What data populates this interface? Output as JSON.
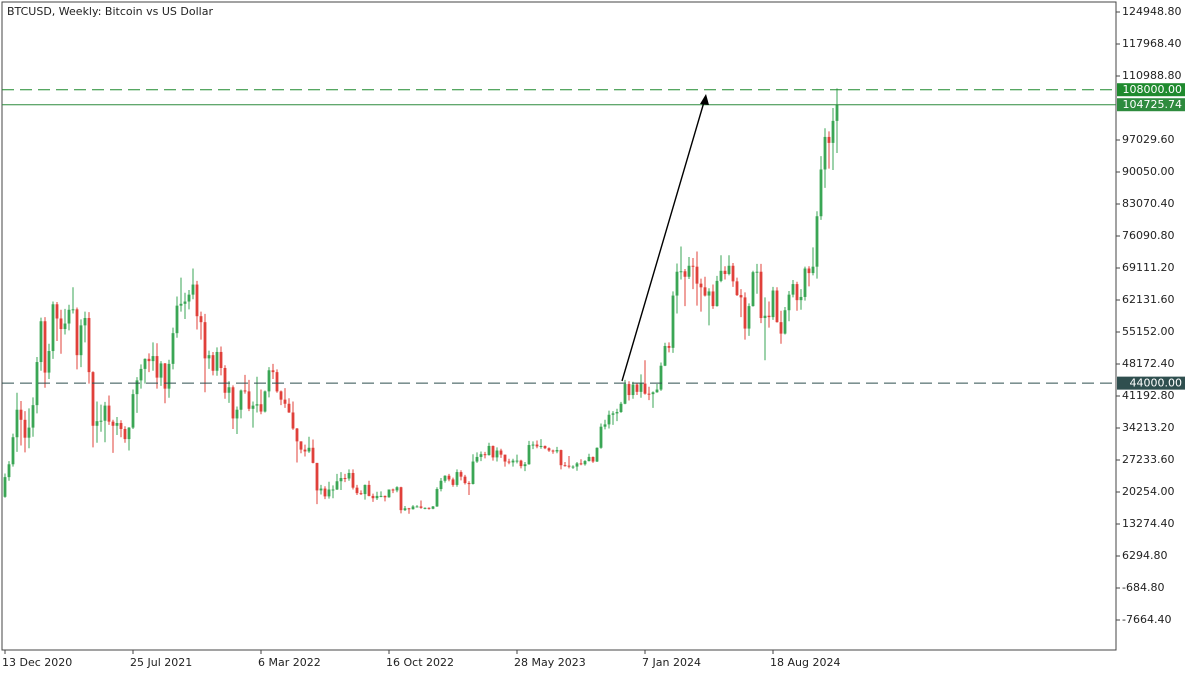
{
  "chart_data": {
    "type": "candlestick",
    "title": "BTCUSD, Weekly:  Bitcoin vs US Dollar",
    "up_color": "#3aa655",
    "down_color": "#e0403a",
    "xlim": [
      -0.75,
      277.75
    ],
    "xticks": [
      {
        "value": 0,
        "label": "13 Dec 2020"
      },
      {
        "value": 32,
        "label": "25 Jul 2021"
      },
      {
        "value": 64,
        "label": "6 Mar 2022"
      },
      {
        "value": 96,
        "label": "16 Oct 2022"
      },
      {
        "value": 128,
        "label": "28 May 2023"
      },
      {
        "value": 160,
        "label": "7 Jan 2024"
      },
      {
        "value": 192,
        "label": "18 Aug 2024"
      }
    ],
    "ylim": [
      -14208,
      127130
    ],
    "yticks": [
      {
        "value": 124948.8,
        "label": "124948.80"
      },
      {
        "value": 117968.4,
        "label": "117968.40"
      },
      {
        "value": 110988.8,
        "label": "110988.80"
      },
      {
        "value": 97029.6,
        "label": "97029.60"
      },
      {
        "value": 90050,
        "label": "90050.00"
      },
      {
        "value": 83070.4,
        "label": "83070.40"
      },
      {
        "value": 76090.8,
        "label": "76090.80"
      },
      {
        "value": 69111.2,
        "label": "69111.20"
      },
      {
        "value": 62131.6,
        "label": "62131.60"
      },
      {
        "value": 55152,
        "label": "55152.00"
      },
      {
        "value": 48172.4,
        "label": "48172.40"
      },
      {
        "value": 41192.8,
        "label": "41192.80"
      },
      {
        "value": 34213.2,
        "label": "34213.20"
      },
      {
        "value": 27233.6,
        "label": "27233.60"
      },
      {
        "value": 20254,
        "label": "20254.00"
      },
      {
        "value": 13274.4,
        "label": "13274.40"
      },
      {
        "value": 6294.8,
        "label": "6294.80"
      },
      {
        "value": -684.8,
        "label": "-684.80"
      },
      {
        "value": -7664.4,
        "label": "-7664.40"
      }
    ],
    "levels": [
      {
        "value": 108000,
        "label": "108000.00",
        "style": "dashed",
        "color": "#1f8a2e"
      },
      {
        "value": 104725.74,
        "style": "solid",
        "color": "#2e8b3e"
      },
      {
        "value": 44000,
        "label": "44000.00",
        "style": "dashed",
        "color": "#2f4f4f"
      }
    ],
    "ohlc": [
      [
        19200,
        24300,
        19000,
        23500
      ],
      [
        23500,
        27000,
        22700,
        26300
      ],
      [
        26300,
        33000,
        25800,
        32200
      ],
      [
        32200,
        41900,
        29000,
        38200
      ],
      [
        38200,
        40100,
        30400,
        36000
      ],
      [
        36000,
        37900,
        28900,
        32100
      ],
      [
        32100,
        38500,
        29800,
        34300
      ],
      [
        34300,
        40900,
        32300,
        39200
      ],
      [
        39200,
        49700,
        37400,
        48600
      ],
      [
        48600,
        58300,
        46700,
        57500
      ],
      [
        57500,
        58400,
        43000,
        46300
      ],
      [
        46300,
        52600,
        44900,
        51000
      ],
      [
        51000,
        61800,
        49300,
        61200
      ],
      [
        61200,
        61700,
        53200,
        58100
      ],
      [
        58100,
        60000,
        50400,
        55800
      ],
      [
        55800,
        60200,
        54600,
        57000
      ],
      [
        57000,
        61100,
        55500,
        60000
      ],
      [
        60000,
        64900,
        59200,
        60100
      ],
      [
        60100,
        60500,
        47000,
        50100
      ],
      [
        50100,
        57900,
        47500,
        56600
      ],
      [
        56600,
        59600,
        52900,
        58200
      ],
      [
        58200,
        59500,
        43900,
        46400
      ],
      [
        46400,
        46600,
        30000,
        34700
      ],
      [
        34700,
        40000,
        31000,
        35700
      ],
      [
        35700,
        39300,
        33400,
        35800
      ],
      [
        35800,
        39900,
        31100,
        39100
      ],
      [
        39100,
        41300,
        34900,
        35600
      ],
      [
        35600,
        36000,
        28800,
        34700
      ],
      [
        34700,
        36600,
        32700,
        35300
      ],
      [
        35300,
        35900,
        32200,
        34000
      ],
      [
        34000,
        34600,
        31000,
        31800
      ],
      [
        31800,
        34400,
        29300,
        34300
      ],
      [
        34300,
        42600,
        34000,
        41600
      ],
      [
        41600,
        45300,
        37500,
        44600
      ],
      [
        44600,
        48100,
        42800,
        47100
      ],
      [
        47100,
        49400,
        43900,
        49300
      ],
      [
        49300,
        50500,
        46400,
        48800
      ],
      [
        48800,
        52900,
        46700,
        49900
      ],
      [
        49900,
        52700,
        42800,
        45200
      ],
      [
        45200,
        48800,
        43400,
        48300
      ],
      [
        48300,
        48400,
        39600,
        42800
      ],
      [
        42800,
        49100,
        40800,
        48200
      ],
      [
        48200,
        56100,
        47000,
        54900
      ],
      [
        54900,
        62900,
        53900,
        60900
      ],
      [
        60900,
        67000,
        59600,
        61300
      ],
      [
        61300,
        63700,
        58000,
        61800
      ],
      [
        61800,
        64300,
        60100,
        63300
      ],
      [
        63300,
        69000,
        62300,
        65500
      ],
      [
        65500,
        66300,
        55700,
        58600
      ],
      [
        58600,
        59600,
        53500,
        57300
      ],
      [
        57300,
        59100,
        42000,
        49400
      ],
      [
        49400,
        51100,
        47100,
        50100
      ],
      [
        50100,
        50800,
        45700,
        46700
      ],
      [
        46700,
        51800,
        45600,
        50800
      ],
      [
        50800,
        52000,
        45700,
        47300
      ],
      [
        47300,
        47900,
        40600,
        41900
      ],
      [
        41900,
        44400,
        39700,
        43100
      ],
      [
        43100,
        43500,
        34000,
        36300
      ],
      [
        36300,
        38900,
        32900,
        38200
      ],
      [
        38200,
        42600,
        36300,
        42400
      ],
      [
        42400,
        45800,
        41700,
        42200
      ],
      [
        42200,
        44700,
        37900,
        38400
      ],
      [
        38400,
        40000,
        34300,
        39100
      ],
      [
        39100,
        45400,
        37600,
        39400
      ],
      [
        39400,
        42600,
        37200,
        37800
      ],
      [
        37800,
        42400,
        37600,
        42200
      ],
      [
        42200,
        47500,
        40900,
        46800
      ],
      [
        46800,
        48200,
        44900,
        46400
      ],
      [
        46400,
        47000,
        41900,
        42200
      ],
      [
        42200,
        42400,
        39200,
        40400
      ],
      [
        40400,
        42900,
        38600,
        39500
      ],
      [
        39500,
        40700,
        37500,
        37600
      ],
      [
        37600,
        40000,
        33800,
        34100
      ],
      [
        34100,
        34200,
        26700,
        31300
      ],
      [
        31300,
        31300,
        28700,
        29500
      ],
      [
        29500,
        30600,
        28000,
        29100
      ],
      [
        29100,
        32300,
        28800,
        29900
      ],
      [
        29900,
        31700,
        26500,
        26600
      ],
      [
        26600,
        26600,
        17600,
        20600
      ],
      [
        20600,
        21800,
        19700,
        21000
      ],
      [
        21000,
        21500,
        18700,
        19300
      ],
      [
        19300,
        22500,
        18800,
        20800
      ],
      [
        20800,
        21700,
        18900,
        20800
      ],
      [
        20800,
        24200,
        20700,
        22600
      ],
      [
        22600,
        24600,
        20700,
        23300
      ],
      [
        23300,
        24200,
        22400,
        23200
      ],
      [
        23200,
        25200,
        22700,
        24400
      ],
      [
        24400,
        25200,
        20800,
        21200
      ],
      [
        21200,
        21800,
        19600,
        20000
      ],
      [
        20000,
        20600,
        19600,
        19800
      ],
      [
        19800,
        21900,
        18600,
        21800
      ],
      [
        21800,
        22700,
        19300,
        19400
      ],
      [
        19400,
        19900,
        18100,
        18900
      ],
      [
        18900,
        20300,
        18500,
        19400
      ],
      [
        19400,
        20400,
        19100,
        19400
      ],
      [
        19400,
        19500,
        18200,
        19100
      ],
      [
        19100,
        20800,
        19000,
        20800
      ],
      [
        20800,
        21000,
        20000,
        20600
      ],
      [
        20600,
        21500,
        20200,
        21300
      ],
      [
        21300,
        21400,
        15600,
        16300
      ],
      [
        16300,
        17200,
        16100,
        16700
      ],
      [
        16700,
        16800,
        15500,
        16500
      ],
      [
        16500,
        17400,
        16400,
        17100
      ],
      [
        17100,
        17400,
        16900,
        17100
      ],
      [
        17100,
        18400,
        16600,
        16800
      ],
      [
        16800,
        16900,
        16500,
        16800
      ],
      [
        16800,
        16900,
        16400,
        16600
      ],
      [
        16600,
        17200,
        16500,
        17100
      ],
      [
        17100,
        21300,
        17000,
        20900
      ],
      [
        20900,
        23300,
        20400,
        22700
      ],
      [
        22700,
        23900,
        22300,
        23800
      ],
      [
        23800,
        24200,
        22600,
        23000
      ],
      [
        23000,
        23400,
        21400,
        21800
      ],
      [
        21800,
        25200,
        21400,
        24600
      ],
      [
        24600,
        25000,
        22800,
        23600
      ],
      [
        23600,
        24000,
        21900,
        22200
      ],
      [
        22200,
        22600,
        19600,
        22000
      ],
      [
        22000,
        28500,
        21900,
        26900
      ],
      [
        26900,
        28900,
        26600,
        27900
      ],
      [
        27900,
        29100,
        27000,
        28500
      ],
      [
        28500,
        29000,
        27600,
        28300
      ],
      [
        28300,
        31000,
        28200,
        30300
      ],
      [
        30300,
        30400,
        27100,
        27800
      ],
      [
        27800,
        30000,
        26900,
        29300
      ],
      [
        29300,
        29700,
        27700,
        28400
      ],
      [
        28400,
        28400,
        25800,
        26900
      ],
      [
        26900,
        27500,
        26300,
        26700
      ],
      [
        26700,
        27500,
        25800,
        27100
      ],
      [
        27100,
        28400,
        26500,
        27100
      ],
      [
        27100,
        27300,
        25400,
        25900
      ],
      [
        25900,
        26800,
        24800,
        26300
      ],
      [
        26300,
        31400,
        26200,
        30500
      ],
      [
        30500,
        31300,
        29600,
        30600
      ],
      [
        30600,
        31500,
        29800,
        30200
      ],
      [
        30200,
        31800,
        29700,
        30300
      ],
      [
        30300,
        30400,
        29600,
        29800
      ],
      [
        29800,
        30000,
        29000,
        29300
      ],
      [
        29300,
        29500,
        28600,
        29100
      ],
      [
        29100,
        30100,
        28700,
        29400
      ],
      [
        29400,
        29500,
        25200,
        26100
      ],
      [
        26100,
        26800,
        25800,
        26000
      ],
      [
        26000,
        28100,
        25400,
        25800
      ],
      [
        25800,
        26100,
        25300,
        25800
      ],
      [
        25800,
        26800,
        24900,
        26500
      ],
      [
        26500,
        27400,
        26100,
        26300
      ],
      [
        26300,
        27200,
        26000,
        27000
      ],
      [
        27000,
        28600,
        26900,
        27900
      ],
      [
        27900,
        28000,
        26600,
        26900
      ],
      [
        26900,
        30000,
        26800,
        29900
      ],
      [
        29900,
        35200,
        29700,
        34500
      ],
      [
        34500,
        36000,
        33900,
        35000
      ],
      [
        35000,
        38000,
        34100,
        37100
      ],
      [
        37100,
        37900,
        34900,
        37400
      ],
      [
        37400,
        38400,
        35700,
        37700
      ],
      [
        37700,
        39900,
        37500,
        39500
      ],
      [
        39500,
        44700,
        39400,
        43800
      ],
      [
        43800,
        44400,
        40200,
        41400
      ],
      [
        41400,
        44300,
        40600,
        43700
      ],
      [
        43700,
        44000,
        41400,
        42100
      ],
      [
        42100,
        45900,
        40800,
        43900
      ],
      [
        43900,
        49000,
        41500,
        41700
      ],
      [
        41700,
        43200,
        40300,
        41600
      ],
      [
        41600,
        42200,
        38600,
        42000
      ],
      [
        42000,
        43800,
        41900,
        42600
      ],
      [
        42600,
        48500,
        42300,
        47800
      ],
      [
        47800,
        52800,
        47700,
        52100
      ],
      [
        52100,
        52900,
        50700,
        51700
      ],
      [
        51700,
        64000,
        50600,
        63100
      ],
      [
        63100,
        70100,
        59200,
        68300
      ],
      [
        68300,
        73800,
        66600,
        68400
      ],
      [
        68400,
        68900,
        60800,
        67200
      ],
      [
        67200,
        71500,
        66700,
        69600
      ],
      [
        69600,
        71300,
        64500,
        69400
      ],
      [
        69400,
        72700,
        60900,
        65700
      ],
      [
        65700,
        66800,
        59600,
        64900
      ],
      [
        64900,
        67200,
        62900,
        63100
      ],
      [
        63100,
        64700,
        56600,
        64000
      ],
      [
        64000,
        65500,
        60200,
        60800
      ],
      [
        60800,
        67400,
        60700,
        66300
      ],
      [
        66300,
        71900,
        66000,
        68500
      ],
      [
        68500,
        69500,
        66600,
        67800
      ],
      [
        67800,
        71900,
        67500,
        69600
      ],
      [
        69600,
        70200,
        65000,
        66200
      ],
      [
        66200,
        67000,
        63000,
        63200
      ],
      [
        63200,
        64500,
        58400,
        62700
      ],
      [
        62700,
        63800,
        53500,
        55900
      ],
      [
        55900,
        61400,
        54300,
        60800
      ],
      [
        60800,
        68500,
        60700,
        68200
      ],
      [
        68200,
        70000,
        63500,
        68300
      ],
      [
        68300,
        70000,
        57100,
        58200
      ],
      [
        58200,
        62700,
        49000,
        58700
      ],
      [
        58700,
        61800,
        56100,
        58400
      ],
      [
        58400,
        65000,
        57800,
        64200
      ],
      [
        64200,
        64900,
        57200,
        57300
      ],
      [
        57300,
        59800,
        52600,
        54800
      ],
      [
        54800,
        60600,
        54600,
        59900
      ],
      [
        59900,
        64100,
        57500,
        63300
      ],
      [
        63300,
        66500,
        62700,
        65600
      ],
      [
        65600,
        66100,
        59800,
        62100
      ],
      [
        62100,
        64500,
        60000,
        62800
      ],
      [
        62800,
        69400,
        62000,
        69000
      ],
      [
        69000,
        69500,
        65100,
        68000
      ],
      [
        68000,
        73600,
        67500,
        69400
      ],
      [
        69400,
        81500,
        66800,
        80400
      ],
      [
        80400,
        93500,
        79600,
        90600
      ],
      [
        90600,
        99600,
        86600,
        97700
      ],
      [
        97700,
        98900,
        90800,
        96400
      ],
      [
        96400,
        104000,
        90500,
        101200
      ],
      [
        101200,
        108300,
        94200,
        104725.74
      ]
    ]
  }
}
